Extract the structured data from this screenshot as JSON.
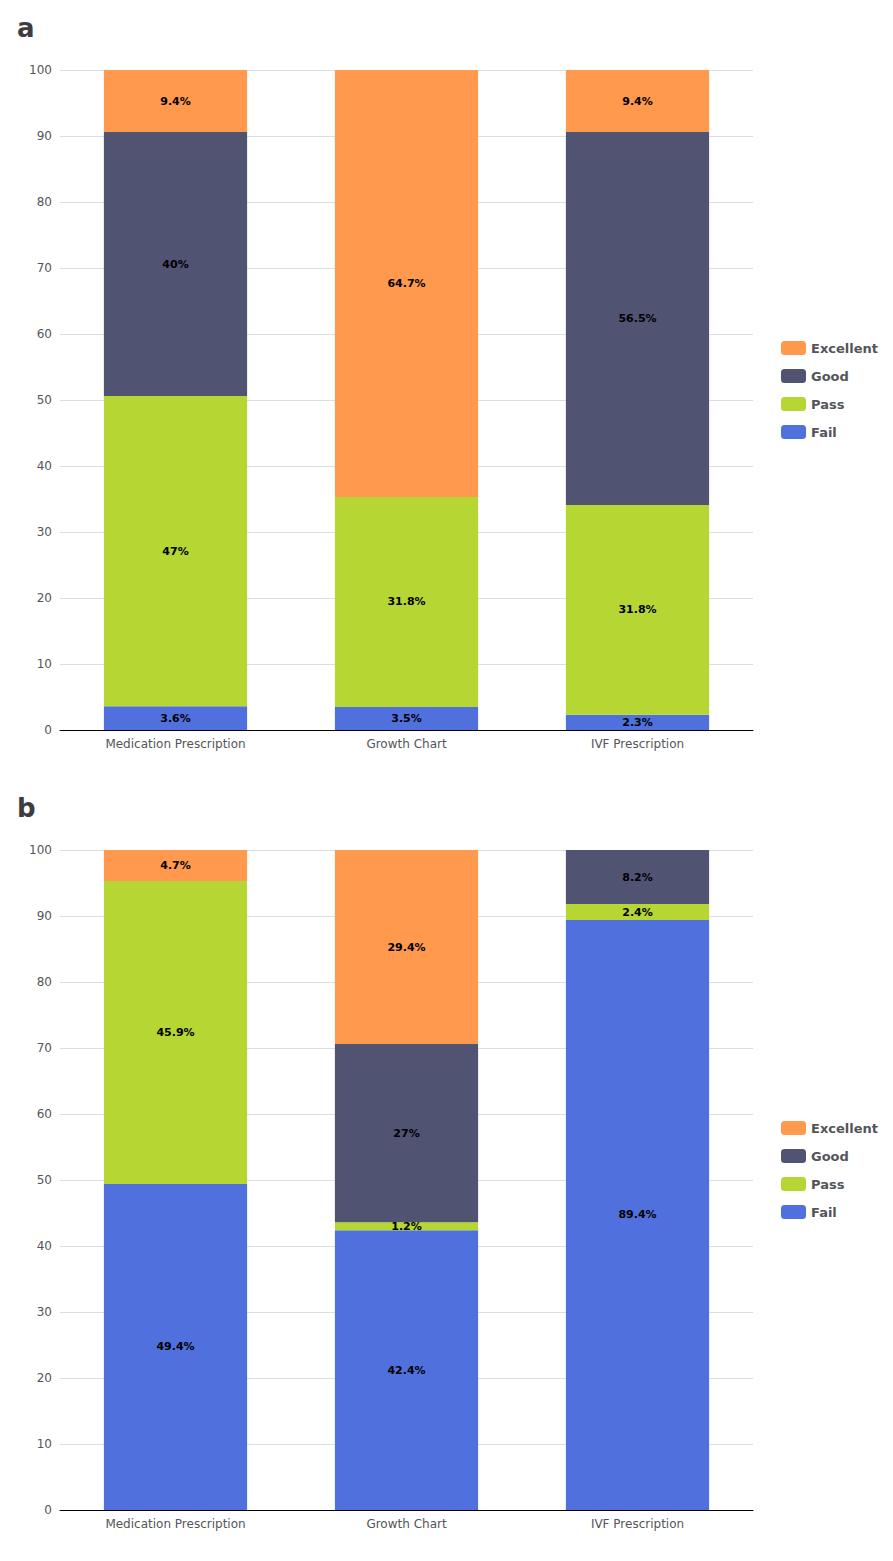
{
  "chart_data": [
    {
      "type": "bar",
      "title": "a",
      "stacked": true,
      "data_labels": true,
      "grid": true,
      "legend": "right",
      "categories": [
        "Medication Prescription",
        "Growth Chart",
        "IVF Prescription"
      ],
      "series": [
        {
          "name": "Fail",
          "values": [
            3.6,
            3.5,
            2.3
          ],
          "value_labels": [
            "3.6%",
            "3.5%",
            "2.3%"
          ]
        },
        {
          "name": "Pass",
          "values": [
            47.0,
            31.8,
            31.8
          ],
          "value_labels": [
            "47%",
            "31.8%",
            "31.8%"
          ]
        },
        {
          "name": "Good",
          "values": [
            40.0,
            0.0,
            56.5
          ],
          "value_labels": [
            "40%",
            null,
            "56.5%"
          ]
        },
        {
          "name": "Excellent",
          "values": [
            9.4,
            64.7,
            9.4
          ],
          "value_labels": [
            "9.4%",
            "64.7%",
            "9.4%"
          ]
        }
      ],
      "ylim": [
        0,
        100
      ],
      "yticks": [
        0,
        10,
        20,
        30,
        40,
        50,
        60,
        70,
        80,
        90,
        100
      ]
    },
    {
      "type": "bar",
      "title": "b",
      "stacked": true,
      "data_labels": true,
      "grid": true,
      "legend": "right",
      "categories": [
        "Medication Prescription",
        "Growth Chart",
        "IVF Prescription"
      ],
      "series": [
        {
          "name": "Fail",
          "values": [
            49.4,
            42.4,
            89.4
          ],
          "value_labels": [
            "49.4%",
            "42.4%",
            "89.4%"
          ]
        },
        {
          "name": "Pass",
          "values": [
            45.9,
            1.2,
            2.4
          ],
          "value_labels": [
            "45.9%",
            "1.2%",
            "2.4%"
          ]
        },
        {
          "name": "Good",
          "values": [
            0.0,
            27.0,
            8.2
          ],
          "value_labels": [
            null,
            "27%",
            "8.2%"
          ]
        },
        {
          "name": "Excellent",
          "values": [
            4.7,
            29.4,
            0.0
          ],
          "value_labels": [
            "4.7%",
            "29.4%",
            null
          ]
        }
      ],
      "ylim": [
        0,
        100
      ],
      "yticks": [
        0,
        10,
        20,
        30,
        40,
        50,
        60,
        70,
        80,
        90,
        100
      ]
    }
  ]
}
